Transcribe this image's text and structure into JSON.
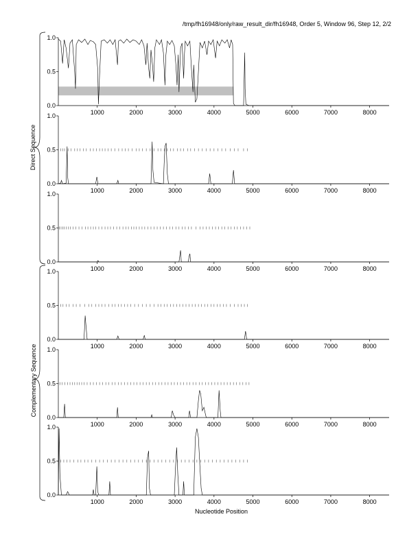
{
  "header": {
    "title": "/tmp/fh16948/only/raw_result_dir/fh16948, Order 5, Window 96, Step 12, 2/2"
  },
  "labels": {
    "direct": "Direct Sequence",
    "complementary": "Complementary Sequence",
    "xlabel": "Nucleotide Position"
  },
  "chart_data": {
    "type": "line",
    "xlim": [
      0,
      8500
    ],
    "ylim": [
      0,
      1
    ],
    "x_ticks": [
      1000,
      2000,
      3000,
      4000,
      5000,
      6000,
      7000,
      8000
    ],
    "y_ticks": [
      0.0,
      0.5,
      1.0
    ],
    "y_tick_labels": [
      "0.0",
      "0.5",
      "1.0"
    ],
    "line_color": "#000000",
    "band_color": "#c0c0c0",
    "panels": [
      {
        "group": "direct",
        "band": [
          0,
          4500,
          0.15,
          0.28
        ],
        "marks": [],
        "series": [
          [
            0,
            0.98
          ],
          [
            60,
            0.95
          ],
          [
            110,
            0.62
          ],
          [
            150,
            0.97
          ],
          [
            200,
            0.85
          ],
          [
            260,
            0.55
          ],
          [
            300,
            0.92
          ],
          [
            360,
            0.97
          ],
          [
            420,
            0.5
          ],
          [
            440,
            0.25
          ],
          [
            460,
            0.9
          ],
          [
            520,
            0.97
          ],
          [
            600,
            0.93
          ],
          [
            680,
            0.98
          ],
          [
            760,
            0.9
          ],
          [
            820,
            0.96
          ],
          [
            900,
            0.94
          ],
          [
            960,
            0.9
          ],
          [
            1010,
            0.55
          ],
          [
            1030,
            0.02
          ],
          [
            1060,
            0.45
          ],
          [
            1100,
            0.95
          ],
          [
            1180,
            0.97
          ],
          [
            1260,
            0.92
          ],
          [
            1330,
            0.97
          ],
          [
            1400,
            0.9
          ],
          [
            1460,
            0.97
          ],
          [
            1520,
            0.6
          ],
          [
            1545,
            0.95
          ],
          [
            1600,
            0.97
          ],
          [
            1680,
            0.92
          ],
          [
            1760,
            0.98
          ],
          [
            1840,
            0.93
          ],
          [
            1920,
            0.97
          ],
          [
            2000,
            0.95
          ],
          [
            2080,
            0.9
          ],
          [
            2140,
            0.97
          ],
          [
            2200,
            0.88
          ],
          [
            2250,
            0.6
          ],
          [
            2280,
            0.92
          ],
          [
            2320,
            0.55
          ],
          [
            2350,
            0.4
          ],
          [
            2380,
            0.82
          ],
          [
            2420,
            0.6
          ],
          [
            2450,
            0.35
          ],
          [
            2480,
            0.85
          ],
          [
            2520,
            0.97
          ],
          [
            2600,
            0.9
          ],
          [
            2650,
            0.97
          ],
          [
            2700,
            0.78
          ],
          [
            2740,
            0.3
          ],
          [
            2760,
            0.72
          ],
          [
            2800,
            0.95
          ],
          [
            2860,
            0.9
          ],
          [
            2920,
            0.96
          ],
          [
            2980,
            0.88
          ],
          [
            3020,
            0.6
          ],
          [
            3050,
            0.3
          ],
          [
            3080,
            0.75
          ],
          [
            3100,
            0.2
          ],
          [
            3120,
            0.5
          ],
          [
            3140,
            0.85
          ],
          [
            3180,
            0.92
          ],
          [
            3220,
            0.4
          ],
          [
            3240,
            0.75
          ],
          [
            3260,
            0.95
          ],
          [
            3320,
            0.88
          ],
          [
            3380,
            0.95
          ],
          [
            3420,
            0.55
          ],
          [
            3460,
            0.2
          ],
          [
            3480,
            0.6
          ],
          [
            3520,
            0.05
          ],
          [
            3560,
            0.1
          ],
          [
            3600,
            0.5
          ],
          [
            3640,
            0.93
          ],
          [
            3700,
            0.85
          ],
          [
            3760,
            0.95
          ],
          [
            3820,
            0.75
          ],
          [
            3860,
            0.95
          ],
          [
            3920,
            0.9
          ],
          [
            3980,
            0.97
          ],
          [
            4040,
            0.7
          ],
          [
            4080,
            0.95
          ],
          [
            4140,
            0.88
          ],
          [
            4200,
            0.97
          ],
          [
            4280,
            0.92
          ],
          [
            4340,
            0.97
          ],
          [
            4400,
            0.85
          ],
          [
            4440,
            0.97
          ],
          [
            4480,
            0.9
          ],
          [
            4500,
            0.03
          ],
          [
            4540,
            0.0
          ],
          [
            4700,
            0.0
          ],
          [
            4760,
            0.0
          ],
          [
            4790,
            0.78
          ],
          [
            4800,
            0.25
          ],
          [
            4820,
            0.02
          ],
          [
            4900,
            0.0
          ],
          [
            8500,
            0.0
          ]
        ]
      },
      {
        "group": "direct",
        "band": null,
        "marks": [
          60,
          110,
          160,
          250,
          330,
          420,
          490,
          560,
          640,
          720,
          820,
          900,
          980,
          1060,
          1130,
          1200,
          1280,
          1360,
          1450,
          1550,
          1640,
          1720,
          1800,
          1900,
          2000,
          2080,
          2160,
          2260,
          2360,
          2460,
          2560,
          2640,
          2720,
          2800,
          2880,
          2960,
          3060,
          3140,
          3220,
          3320,
          3400,
          3500,
          3600,
          3700,
          3800,
          3900,
          4000,
          4100,
          4200,
          4300,
          4420,
          4520,
          4620,
          4760,
          4860
        ],
        "series": [
          [
            0,
            0.0
          ],
          [
            60,
            0.01
          ],
          [
            80,
            0.05
          ],
          [
            110,
            0.0
          ],
          [
            200,
            0.01
          ],
          [
            225,
            0.55
          ],
          [
            240,
            0.1
          ],
          [
            260,
            0.0
          ],
          [
            500,
            0.0
          ],
          [
            960,
            0.0
          ],
          [
            990,
            0.1
          ],
          [
            1020,
            0.0
          ],
          [
            1500,
            0.0
          ],
          [
            1530,
            0.05
          ],
          [
            1550,
            0.0
          ],
          [
            2380,
            0.0
          ],
          [
            2410,
            0.62
          ],
          [
            2430,
            0.2
          ],
          [
            2460,
            0.02
          ],
          [
            2700,
            0.0
          ],
          [
            2720,
            0.3
          ],
          [
            2740,
            0.55
          ],
          [
            2770,
            0.6
          ],
          [
            2800,
            0.15
          ],
          [
            2830,
            0.0
          ],
          [
            3860,
            0.0
          ],
          [
            3890,
            0.15
          ],
          [
            3920,
            0.0
          ],
          [
            4470,
            0.0
          ],
          [
            4500,
            0.2
          ],
          [
            4530,
            0.0
          ],
          [
            8500,
            0.0
          ]
        ]
      },
      {
        "group": "direct",
        "band": null,
        "marks": [
          30,
          70,
          110,
          150,
          200,
          260,
          310,
          380,
          450,
          530,
          610,
          700,
          760,
          830,
          900,
          960,
          1040,
          1120,
          1200,
          1270,
          1340,
          1420,
          1500,
          1580,
          1660,
          1740,
          1800,
          1880,
          1940,
          2000,
          2080,
          2150,
          2220,
          2300,
          2380,
          2460,
          2540,
          2620,
          2700,
          2780,
          2860,
          2940,
          3020,
          3100,
          3180,
          3260,
          3340,
          3420,
          3540,
          3640,
          3720,
          3800,
          3880,
          3960,
          4040,
          4120,
          4200,
          4280,
          4360,
          4440,
          4520,
          4600,
          4680,
          4760,
          4840,
          4920
        ],
        "series": [
          [
            0,
            0.0
          ],
          [
            1000,
            0.0
          ],
          [
            1020,
            0.02
          ],
          [
            1040,
            0.0
          ],
          [
            3100,
            0.0
          ],
          [
            3140,
            0.17
          ],
          [
            3160,
            0.0
          ],
          [
            3340,
            0.0
          ],
          [
            3360,
            0.08
          ],
          [
            3380,
            0.12
          ],
          [
            3400,
            0.0
          ],
          [
            8500,
            0.0
          ]
        ]
      },
      {
        "group": "complementary",
        "band": null,
        "marks": [
          60,
          120,
          200,
          280,
          380,
          460,
          560,
          680,
          780,
          860,
          960,
          1040,
          1120,
          1200,
          1300,
          1380,
          1460,
          1540,
          1620,
          1700,
          1780,
          1860,
          1960,
          2060,
          2160,
          2260,
          2360,
          2460,
          2560,
          2640,
          2720,
          2800,
          2880,
          2960,
          3040,
          3120,
          3200,
          3280,
          3360,
          3440,
          3520,
          3600,
          3680,
          3760,
          3840,
          3920,
          4000,
          4080,
          4160,
          4240,
          4320,
          4420,
          4520,
          4620,
          4700,
          4780,
          4860
        ],
        "series": [
          [
            0,
            0.0
          ],
          [
            660,
            0.0
          ],
          [
            690,
            0.35
          ],
          [
            710,
            0.2
          ],
          [
            740,
            0.0
          ],
          [
            1500,
            0.0
          ],
          [
            1530,
            0.05
          ],
          [
            1560,
            0.0
          ],
          [
            2180,
            0.0
          ],
          [
            2210,
            0.06
          ],
          [
            2230,
            0.0
          ],
          [
            4780,
            0.0
          ],
          [
            4810,
            0.12
          ],
          [
            4840,
            0.0
          ],
          [
            8500,
            0.0
          ]
        ]
      },
      {
        "group": "complementary",
        "band": null,
        "marks": [
          40,
          100,
          170,
          240,
          300,
          360,
          420,
          480,
          540,
          600,
          660,
          740,
          820,
          900,
          980,
          1060,
          1140,
          1220,
          1300,
          1380,
          1460,
          1540,
          1620,
          1700,
          1780,
          1860,
          1940,
          2020,
          2100,
          2180,
          2260,
          2340,
          2420,
          2500,
          2580,
          2660,
          2740,
          2820,
          2900,
          2980,
          3060,
          3140,
          3220,
          3300,
          3380,
          3460,
          3540,
          3620,
          3700,
          3780,
          3860,
          3940,
          4020,
          4100,
          4180,
          4260,
          4340,
          4420,
          4500,
          4580,
          4660,
          4740,
          4820,
          4900
        ],
        "series": [
          [
            0,
            0.0
          ],
          [
            140,
            0.0
          ],
          [
            160,
            0.2
          ],
          [
            180,
            0.0
          ],
          [
            1500,
            0.0
          ],
          [
            1520,
            0.15
          ],
          [
            1540,
            0.0
          ],
          [
            2380,
            0.0
          ],
          [
            2400,
            0.04
          ],
          [
            2420,
            0.0
          ],
          [
            2900,
            0.0
          ],
          [
            2930,
            0.1
          ],
          [
            2960,
            0.04
          ],
          [
            3000,
            0.0
          ],
          [
            3350,
            0.0
          ],
          [
            3370,
            0.1
          ],
          [
            3400,
            0.0
          ],
          [
            3560,
            0.0
          ],
          [
            3600,
            0.25
          ],
          [
            3630,
            0.4
          ],
          [
            3660,
            0.35
          ],
          [
            3700,
            0.1
          ],
          [
            3740,
            0.15
          ],
          [
            3780,
            0.05
          ],
          [
            3800,
            0.0
          ],
          [
            4100,
            0.0
          ],
          [
            4130,
            0.4
          ],
          [
            4160,
            0.1
          ],
          [
            4180,
            0.0
          ],
          [
            8500,
            0.0
          ]
        ]
      },
      {
        "group": "complementary",
        "band": null,
        "marks": [
          60,
          140,
          220,
          300,
          400,
          500,
          580,
          680,
          760,
          860,
          960,
          1060,
          1160,
          1260,
          1360,
          1460,
          1560,
          1660,
          1760,
          1860,
          1960,
          2060,
          2160,
          2260,
          2360,
          2460,
          2560,
          2660,
          2760,
          2860,
          2960,
          3060,
          3160,
          3260,
          3360,
          3460,
          3560,
          3660,
          3760,
          3860,
          3960,
          4060,
          4160,
          4260,
          4360,
          4460,
          4560,
          4660,
          4760,
          4860
        ],
        "series": [
          [
            0,
            0.0
          ],
          [
            20,
            0.98
          ],
          [
            40,
            0.3
          ],
          [
            80,
            0.0
          ],
          [
            200,
            0.0
          ],
          [
            240,
            0.05
          ],
          [
            280,
            0.0
          ],
          [
            880,
            0.0
          ],
          [
            900,
            0.08
          ],
          [
            920,
            0.0
          ],
          [
            960,
            0.0
          ],
          [
            990,
            0.42
          ],
          [
            1010,
            0.05
          ],
          [
            1040,
            0.0
          ],
          [
            1300,
            0.0
          ],
          [
            1320,
            0.2
          ],
          [
            1340,
            0.0
          ],
          [
            2260,
            0.0
          ],
          [
            2290,
            0.55
          ],
          [
            2320,
            0.65
          ],
          [
            2340,
            0.1
          ],
          [
            2370,
            0.0
          ],
          [
            2980,
            0.0
          ],
          [
            3010,
            0.4
          ],
          [
            3040,
            0.7
          ],
          [
            3070,
            0.3
          ],
          [
            3100,
            0.0
          ],
          [
            3200,
            0.0
          ],
          [
            3220,
            0.2
          ],
          [
            3240,
            0.0
          ],
          [
            3480,
            0.0
          ],
          [
            3520,
            0.85
          ],
          [
            3560,
            0.98
          ],
          [
            3600,
            0.85
          ],
          [
            3640,
            0.4
          ],
          [
            3670,
            0.1
          ],
          [
            3700,
            0.0
          ],
          [
            8500,
            0.0
          ]
        ]
      }
    ]
  }
}
